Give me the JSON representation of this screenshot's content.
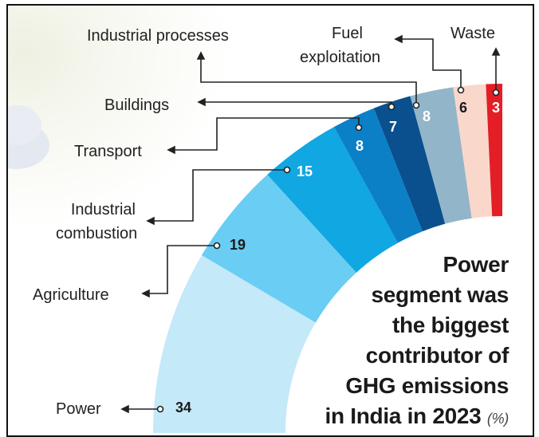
{
  "chart_data": {
    "type": "pie",
    "subtype": "quarter-donut",
    "title": "Power segment was the biggest contributor of GHG emissions in India in 2023",
    "unit": "(%)",
    "categories": [
      "Power",
      "Agriculture",
      "Industrial combustion",
      "Transport",
      "Buildings",
      "Industrial processes",
      "Fuel exploitation",
      "Waste"
    ],
    "values": [
      34,
      19,
      15,
      8,
      7,
      8,
      6,
      3
    ],
    "value_labels": [
      "34",
      "19",
      "15",
      "8",
      "7",
      "8",
      "6",
      "3"
    ],
    "colors": [
      "#c4e9f9",
      "#6acdf3",
      "#10a7e2",
      "#0b80c6",
      "#0a4f8e",
      "#93b5c9",
      "#fad7cb",
      "#e41e26"
    ],
    "label_colors": [
      "#1a1a1a",
      "#1a1a1a",
      "#ffffff",
      "#ffffff",
      "#ffffff",
      "#ffffff",
      "#1a1a1a",
      "#ffffff"
    ]
  },
  "labels": {
    "power": "Power",
    "agriculture": "Agriculture",
    "industrial_combustion_1": "Industrial",
    "industrial_combustion_2": "combustion",
    "transport": "Transport",
    "buildings": "Buildings",
    "industrial_processes": "Industrial processes",
    "fuel_1": "Fuel",
    "fuel_2": "exploitation",
    "waste": "Waste"
  },
  "headline": {
    "lines": [
      "Power",
      "segment was",
      "the biggest",
      "contributor of",
      "GHG emissions",
      "in India in 2023"
    ],
    "unit": "(%)"
  }
}
